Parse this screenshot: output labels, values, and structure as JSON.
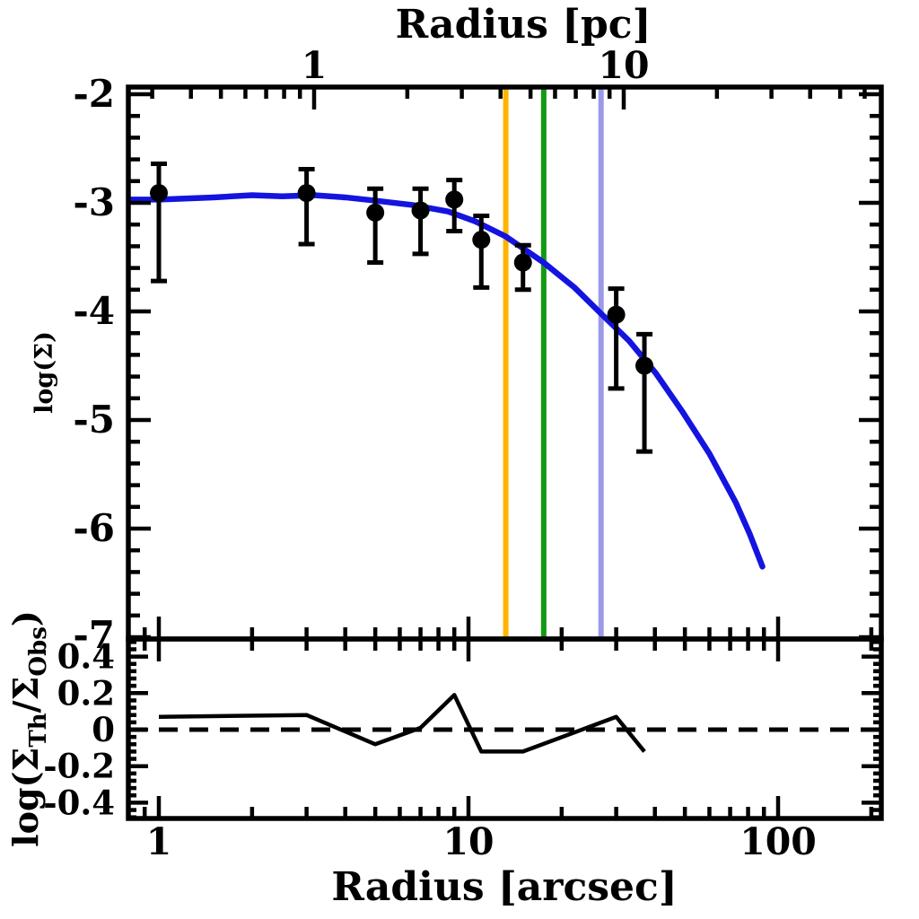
{
  "figure": {
    "background": "#ffffff",
    "frame_color": "#000000",
    "description": "Surface brightness profile with model fit and residual panel"
  },
  "chart_data": {
    "type": "line",
    "x_axis": {
      "scale": "log",
      "label_bottom": "Radius [arcsec]",
      "label_top": "Radius [pc]",
      "range_arcsec": [
        0.8,
        223
      ],
      "major_ticks_bottom_arcsec": [
        1,
        10,
        100
      ],
      "major_ticks_top_pc": [
        1,
        10
      ],
      "arcsec_per_pc": 3.17
    },
    "main_panel": {
      "ylabel": "log(Σ)",
      "y_range": [
        -7.02,
        -1.93
      ],
      "y_major_ticks": [
        -2,
        -3,
        -4,
        -5,
        -6,
        -7
      ],
      "y_minor_step": 0.2,
      "observed_series": {
        "name": "observed surface density",
        "marker": "filled-circle",
        "color": "#000000",
        "points": [
          {
            "r_arcsec": 1.0,
            "log_sigma": -2.91,
            "err_low": -3.72,
            "err_high": -2.64
          },
          {
            "r_arcsec": 3.0,
            "log_sigma": -2.91,
            "err_low": -3.38,
            "err_high": -2.69
          },
          {
            "r_arcsec": 5.0,
            "log_sigma": -3.09,
            "err_low": -3.55,
            "err_high": -2.87
          },
          {
            "r_arcsec": 7.0,
            "log_sigma": -3.07,
            "err_low": -3.47,
            "err_high": -2.87
          },
          {
            "r_arcsec": 9.0,
            "log_sigma": -2.97,
            "err_low": -3.26,
            "err_high": -2.79
          },
          {
            "r_arcsec": 11.0,
            "log_sigma": -3.34,
            "err_low": -3.78,
            "err_high": -3.12
          },
          {
            "r_arcsec": 15.0,
            "log_sigma": -3.55,
            "err_low": -3.8,
            "err_high": -3.39
          },
          {
            "r_arcsec": 30.0,
            "log_sigma": -4.03,
            "err_low": -4.71,
            "err_high": -3.79
          },
          {
            "r_arcsec": 37.0,
            "log_sigma": -4.5,
            "err_low": -5.29,
            "err_high": -4.21
          }
        ]
      },
      "model_series": {
        "name": "model profile",
        "color": "#1414e0",
        "points": [
          [
            0.8,
            -2.97
          ],
          [
            1.0,
            -2.97
          ],
          [
            1.5,
            -2.95
          ],
          [
            2.0,
            -2.93
          ],
          [
            2.5,
            -2.94
          ],
          [
            3.17,
            -2.93
          ],
          [
            4.0,
            -2.95
          ],
          [
            5.0,
            -2.98
          ],
          [
            6.6,
            -3.02
          ],
          [
            8.6,
            -3.08
          ],
          [
            10.5,
            -3.17
          ],
          [
            13.2,
            -3.31
          ],
          [
            17.5,
            -3.55
          ],
          [
            22.0,
            -3.78
          ],
          [
            26.8,
            -4.02
          ],
          [
            33.0,
            -4.27
          ],
          [
            40.3,
            -4.57
          ],
          [
            49.0,
            -4.92
          ],
          [
            60.0,
            -5.31
          ],
          [
            73.0,
            -5.76
          ],
          [
            81.0,
            -6.05
          ],
          [
            89.0,
            -6.35
          ]
        ]
      },
      "vertical_lines": [
        {
          "r_arcsec": 13.2,
          "color": "#ffb400",
          "name": "orange-radius-marker"
        },
        {
          "r_arcsec": 17.5,
          "color": "#139913",
          "name": "green-radius-marker"
        },
        {
          "r_arcsec": 26.8,
          "color": "#9a9ae8",
          "name": "violet-radius-marker"
        }
      ]
    },
    "residual_panel": {
      "ylabel_plain": "log(ΣTh/ΣObs)",
      "ylabel_parts": [
        {
          "text": "log(Σ"
        },
        {
          "text": "Th",
          "sub": true
        },
        {
          "text": "/Σ"
        },
        {
          "text": "Obs",
          "sub": true
        },
        {
          "text": ")"
        }
      ],
      "y_range": [
        -0.49,
        0.5
      ],
      "y_major_ticks": [
        0.4,
        0.2,
        0,
        -0.2,
        -0.4
      ],
      "y_minor_step": 0.04,
      "zero_line": {
        "style": "dashed",
        "value": 0
      },
      "residual_series": {
        "name": "log(model/observed)",
        "color": "#000000",
        "points": [
          {
            "r_arcsec": 1.0,
            "value": 0.07
          },
          {
            "r_arcsec": 3.0,
            "value": 0.08
          },
          {
            "r_arcsec": 5.0,
            "value": -0.08
          },
          {
            "r_arcsec": 7.0,
            "value": 0.01
          },
          {
            "r_arcsec": 9.0,
            "value": 0.19
          },
          {
            "r_arcsec": 11.0,
            "value": -0.12
          },
          {
            "r_arcsec": 15.0,
            "value": -0.12
          },
          {
            "r_arcsec": 30.0,
            "value": 0.07
          },
          {
            "r_arcsec": 37.0,
            "value": -0.12
          }
        ]
      }
    }
  }
}
